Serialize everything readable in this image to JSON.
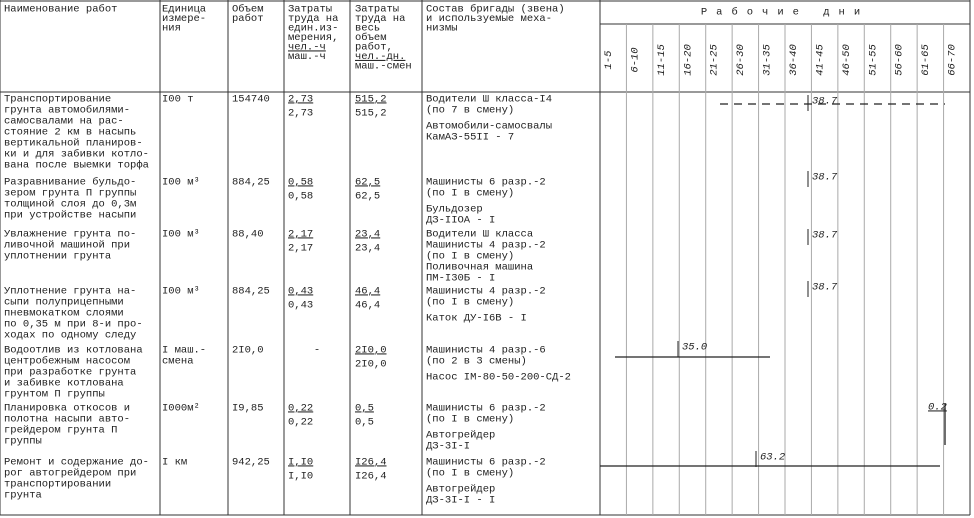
{
  "header": {
    "columns": [
      [
        "Наименование работ"
      ],
      [
        "Единица",
        "измере-",
        "ния"
      ],
      [
        "Объем",
        "работ"
      ],
      [
        "Затраты",
        "труда на",
        "един.из-",
        "мерения,",
        "чел.-ч",
        "маш.-ч"
      ],
      [
        "Затраты",
        "труда на",
        "весь",
        "объем",
        "работ,",
        "чел.-дн.",
        "маш.-смен"
      ],
      [
        "Состав бригады (звена)",
        "и используемые меха-",
        "низмы"
      ]
    ],
    "days_title": "Рабочие дни",
    "day_ranges": [
      "1-5",
      "6-10",
      "11-15",
      "16-20",
      "21-25",
      "26-30",
      "31-35",
      "36-40",
      "41-45",
      "46-50",
      "51-55",
      "56-60",
      "61-65",
      "66-70"
    ]
  },
  "rows": [
    {
      "name": [
        "Транспортирование",
        "грунта автомобилями-",
        "самосвалами на рас-",
        "стояние 2 км в насыпь",
        "вертикальной планиров-",
        "ки и для забивки котло-",
        "вана после выемки торфа"
      ],
      "unit": [
        "I00 т"
      ],
      "volume": "154740",
      "labor_unit": [
        "2,73",
        "2,73"
      ],
      "labor_total": [
        "515,2",
        "515,2"
      ],
      "crew": [
        [
          "Водители Ш класса-I4",
          "(по 7 в смену)"
        ],
        [
          "Автомобили-самосвалы",
          "КамАЗ-55II - 7"
        ]
      ],
      "schedule_label": "38.7"
    },
    {
      "name": [
        "Разравнивание бульдо-",
        "зером грунта П группы",
        "толщиной слоя до 0,3м",
        "при устройстве насыпи"
      ],
      "unit": [
        "I00 м³"
      ],
      "volume": "884,25",
      "labor_unit": [
        "0,58",
        "0,58"
      ],
      "labor_total": [
        "62,5",
        "62,5"
      ],
      "crew": [
        [
          "Машинисты 6 разр.-2",
          "(по I в смену)"
        ],
        [
          "Бульдозер",
          "ДЗ-IIOA - I"
        ]
      ],
      "schedule_label": "38.7"
    },
    {
      "name": [
        "Увлажнение грунта по-",
        "ливочной машиной при",
        "уплотнении грунта"
      ],
      "unit": [
        "I00 м³"
      ],
      "volume": "88,40",
      "labor_unit": [
        "2,17",
        "2,17"
      ],
      "labor_total": [
        "23,4",
        "23,4"
      ],
      "crew": [
        [
          "Водители Ш класса",
          "Машинисты 4 разр.-2",
          "(по I в смену)",
          "Поливочная машина",
          "ПМ-I30Б - I"
        ]
      ],
      "schedule_label": "38.7"
    },
    {
      "name": [
        "Уплотнение грунта на-",
        "сыпи полуприцепными",
        "пневмокатком слоями",
        "по 0,35 м при 8-и про-",
        "ходах по одному следу"
      ],
      "unit": [
        "I00 м³"
      ],
      "volume": "884,25",
      "labor_unit": [
        "0,43",
        "0,43"
      ],
      "labor_total": [
        "46,4",
        "46,4"
      ],
      "crew": [
        [
          "Машинисты 4 разр.-2",
          "(по I в смену)"
        ],
        [
          "Каток ДУ-I6B - I"
        ]
      ],
      "schedule_label": "38.7"
    },
    {
      "name": [
        "Водоотлив из котлована",
        "центробежным насосом",
        "при разработке грунта",
        "и забивке котлована",
        "грунтом П группы"
      ],
      "unit": [
        "I маш.-",
        "смена"
      ],
      "volume": "2I0,0",
      "labor_unit": [
        "-"
      ],
      "labor_total": [
        "2I0,0",
        "2I0,0"
      ],
      "crew": [
        [
          "Машинисты 4 разр.-6",
          "(по 2 в 3 смены)"
        ],
        [
          "Насос IM-80-50-200-СД-2"
        ]
      ],
      "schedule_label": "35.0"
    },
    {
      "name": [
        "Планировка откосов и",
        "полотна насыпи авто-",
        "грейдером грунта П",
        "группы"
      ],
      "unit": [
        "I000м²"
      ],
      "volume": "I9,85",
      "labor_unit": [
        "0,22",
        "0,22"
      ],
      "labor_total": [
        "0,5",
        "0,5"
      ],
      "crew": [
        [
          "Машинисты 6 разр.-2",
          "(по I в смену)"
        ],
        [
          "Автогрейдер",
          "ДЗ-3I-I"
        ]
      ],
      "schedule_label": "0.2"
    },
    {
      "name": [
        "Ремонт и содержание до-",
        "рог автогрейдером при",
        "транспортировании",
        "грунта"
      ],
      "unit": [
        "I км"
      ],
      "volume": "942,25",
      "labor_unit": [
        "I,I0",
        "I,I0"
      ],
      "labor_total": [
        "I26,4",
        "I26,4"
      ],
      "crew": [
        [
          "Машинисты 6 разр.-2",
          "(по I в смену)"
        ],
        [
          "Автогрейдер",
          "ДЗ-3I-I - I"
        ]
      ],
      "schedule_label": "63.2"
    }
  ]
}
